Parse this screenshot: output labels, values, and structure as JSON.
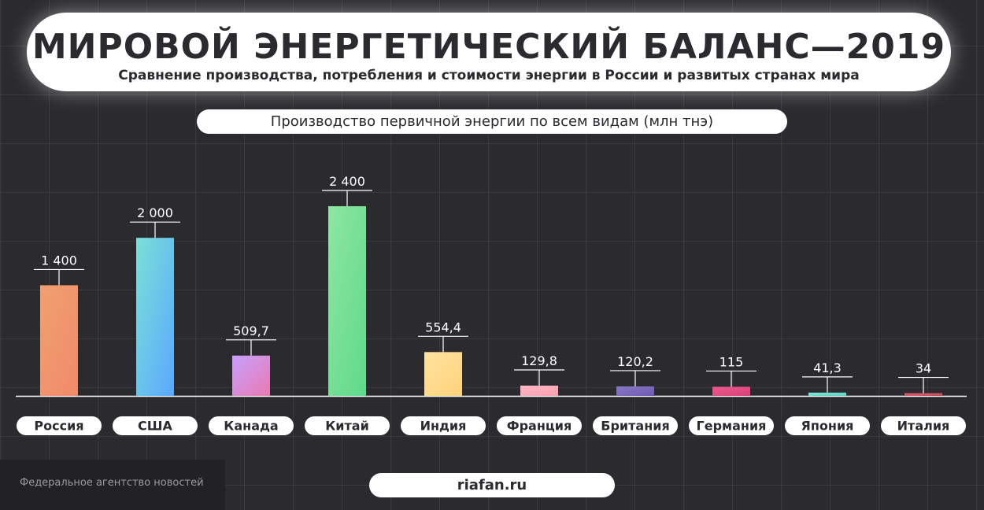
{
  "header": {
    "title": "МИРОВОЙ ЭНЕРГЕТИЧЕСКИЙ БАЛАНС—2019",
    "subtitle": "Сравнение производства, потребления и стоимости энергии в России и развитых странах мира"
  },
  "chart_data": {
    "type": "bar",
    "title": "Производство первичной энергии по всем видам (млн тнэ)",
    "categories": [
      "Россия",
      "США",
      "Канада",
      "Китай",
      "Индия",
      "Франция",
      "Британия",
      "Германия",
      "Япония",
      "Италия"
    ],
    "values": [
      1400,
      2000,
      509.7,
      2400,
      554.4,
      129.8,
      120.2,
      115,
      41.3,
      34
    ],
    "value_labels": [
      "1 400",
      "2 000",
      "509,7",
      "2 400",
      "554,4",
      "129,8",
      "120,2",
      "115",
      "41,3",
      "34"
    ],
    "colors": [
      [
        "#f0a070",
        "#f08a6a"
      ],
      [
        "#7ae0d6",
        "#5aa8ff"
      ],
      [
        "#c7a0ff",
        "#e97ab0"
      ],
      [
        "#8ee6a0",
        "#60d98a"
      ],
      [
        "#ffe2a0",
        "#ffd27a"
      ],
      [
        "#ffb8c2",
        "#ff9eb0"
      ],
      [
        "#8c78c8",
        "#6e5ab0"
      ],
      [
        "#ec5a8a",
        "#d94078"
      ],
      [
        "#7ae8d8",
        "#5dd2c4"
      ],
      [
        "#e06070",
        "#c84858"
      ]
    ],
    "ylim": [
      0,
      2400
    ],
    "grid": true
  },
  "footer": {
    "source": "riafan.ru",
    "agency": "Федеральное агентство новостей"
  }
}
